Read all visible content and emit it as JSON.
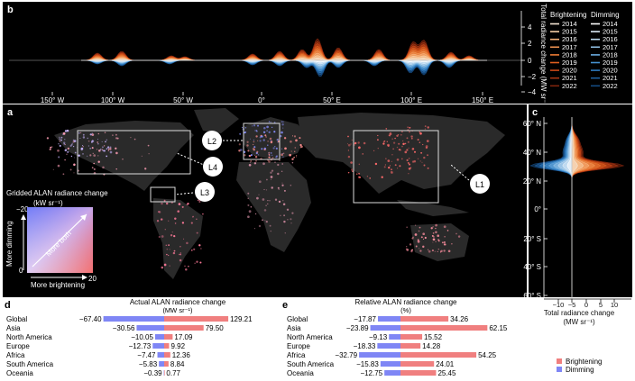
{
  "panels": {
    "b": "b",
    "a": "a",
    "c": "c",
    "d": "d",
    "e": "e"
  },
  "panel_b": {
    "ylabel": "Total radiance change (MW sr⁻¹)",
    "xticks": [
      "150° W",
      "100° W",
      "50° W",
      "0°",
      "50° E",
      "100° E",
      "150° E"
    ],
    "yticks": [
      "4",
      "2",
      "0",
      "−2",
      "−4"
    ],
    "legend": {
      "bright_title": "Brightening",
      "dim_title": "Dimming",
      "years": [
        "2014",
        "2015",
        "2016",
        "2017",
        "2018",
        "2019",
        "2020",
        "2021",
        "2022"
      ],
      "bright_colors": [
        "#f5e6d3",
        "#f7cfa6",
        "#f6b27a",
        "#f29552",
        "#ec7a33",
        "#e05f1f",
        "#c94717",
        "#a83512",
        "#7f240d"
      ],
      "dim_colors": [
        "#ffffff",
        "#dcebf7",
        "#bcd9f0",
        "#93c3e8",
        "#6aabdf",
        "#4592d1",
        "#2c78bd",
        "#1e5fa0",
        "#154a80"
      ]
    }
  },
  "panel_a": {
    "callouts": [
      "L1",
      "L2",
      "L3",
      "L4"
    ],
    "inset_title": "Gridded ALAN radiance change",
    "inset_unit": "(kW sr⁻¹)",
    "inset_y_top": "−20",
    "inset_zero": "0",
    "inset_x_right": "20",
    "inset_ylabel": "More dimming",
    "inset_xlabel": "More brightening",
    "inset_diag": "More both"
  },
  "panel_c": {
    "yticks": [
      "60° N",
      "40° N",
      "20° N",
      "0°",
      "20° S",
      "40° S",
      "60° S"
    ],
    "xticks": [
      "−10",
      "−5",
      "0",
      "5",
      "10"
    ],
    "xlabel": "Total radiance change",
    "xunit": "(MW sr⁻¹)"
  },
  "chart_data": [
    {
      "type": "bar",
      "title": "Actual ALAN radiance change",
      "unit": "(MW sr⁻¹)",
      "categories": [
        "Global",
        "Asia",
        "North America",
        "Europe",
        "Africa",
        "South America",
        "Oceania"
      ],
      "series": [
        {
          "name": "Dimming",
          "values": [
            -67.4,
            -30.56,
            -10.05,
            -12.73,
            -7.47,
            -5.83,
            -0.39
          ]
        },
        {
          "name": "Brightening",
          "values": [
            129.21,
            79.5,
            17.09,
            9.92,
            12.36,
            8.84,
            0.77
          ]
        }
      ],
      "labels_dim": [
        "−67.40",
        "−30.56",
        "−10.05",
        "−12.73",
        "−7.47",
        "−5.83",
        "−0.39"
      ],
      "labels_bright": [
        "129.21",
        "79.50",
        "17.09",
        "9.92",
        "12.36",
        "8.84",
        "0.77"
      ]
    },
    {
      "type": "bar",
      "title": "Relative ALAN radiance change",
      "unit": "(%)",
      "categories": [
        "Global",
        "Asia",
        "North America",
        "Europe",
        "Africa",
        "South America",
        "Oceania"
      ],
      "series": [
        {
          "name": "Dimming",
          "values": [
            -17.87,
            -23.89,
            -9.13,
            -18.33,
            -32.79,
            -15.83,
            -12.75
          ]
        },
        {
          "name": "Brightening",
          "values": [
            34.26,
            62.15,
            15.52,
            14.28,
            54.25,
            24.01,
            25.45
          ]
        }
      ],
      "labels_dim": [
        "−17.87",
        "−23.89",
        "−9.13",
        "−18.33",
        "−32.79",
        "−15.83",
        "−12.75"
      ],
      "labels_bright": [
        "34.26",
        "62.15",
        "15.52",
        "14.28",
        "54.25",
        "24.01",
        "25.45"
      ]
    }
  ],
  "legend_de": {
    "bright": "Brightening",
    "dim": "Dimming",
    "bright_color": "#f07f7f",
    "dim_color": "#7f86f5"
  }
}
